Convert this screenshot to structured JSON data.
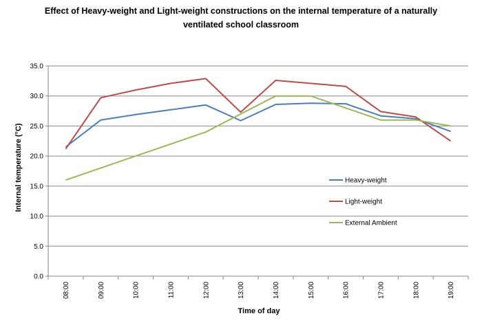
{
  "chart_data": {
    "type": "line",
    "title_lines": [
      "Effect of Heavy-weight and Light-weight constructions on the internal temperature of a naturally",
      "ventilated school classroom"
    ],
    "xlabel": "Time of day",
    "ylabel": "Internal temperature (°C)",
    "categories": [
      "08:00",
      "09:00",
      "10:00",
      "11:00",
      "12:00",
      "13:00",
      "14:00",
      "15:00",
      "16:00",
      "17:00",
      "18:00",
      "19:00"
    ],
    "ylim": [
      0,
      35
    ],
    "yticks": [
      "0.0",
      "5.0",
      "10.0",
      "15.0",
      "20.0",
      "25.0",
      "30.0",
      "35.0"
    ],
    "grid": true,
    "legend_position": "right-middle",
    "series": [
      {
        "name": "Heavy-weight",
        "color": "#4a7ebb",
        "values": [
          21.5,
          26.0,
          26.9,
          27.7,
          28.5,
          25.9,
          28.6,
          28.8,
          28.7,
          26.7,
          26.2,
          24.1
        ]
      },
      {
        "name": "Light-weight",
        "color": "#be4b48",
        "values": [
          21.2,
          29.7,
          31.0,
          32.1,
          32.9,
          27.3,
          32.6,
          32.1,
          31.6,
          27.4,
          26.5,
          22.5
        ]
      },
      {
        "name": "External Ambient",
        "color": "#98b954",
        "values": [
          16.0,
          18.0,
          20.0,
          22.0,
          24.0,
          27.0,
          30.0,
          30.0,
          28.0,
          26.0,
          26.0,
          25.0
        ]
      }
    ]
  }
}
